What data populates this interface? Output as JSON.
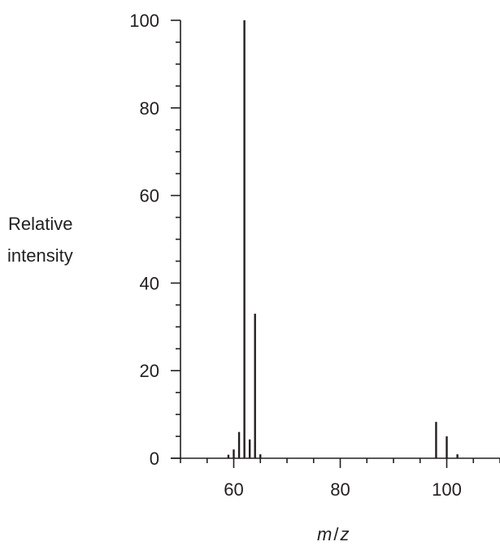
{
  "chart_data": {
    "type": "bar",
    "xlabel": "m/z",
    "xlabel_parts": {
      "m": "m",
      "slash": "/",
      "z": "z"
    },
    "ylabel": [
      "Relative",
      "intensity"
    ],
    "xlim": [
      50,
      110
    ],
    "ylim": [
      0,
      100
    ],
    "x_ticks": [
      60,
      80,
      100
    ],
    "x_minor_step": 5,
    "y_ticks": [
      0,
      20,
      40,
      60,
      80,
      100
    ],
    "y_minor_step": 5,
    "grid": false,
    "colors": {
      "stick": "#231f20",
      "axis": "#231f20"
    },
    "peaks": [
      {
        "x": 59,
        "y": 0.8
      },
      {
        "x": 60,
        "y": 2
      },
      {
        "x": 61,
        "y": 6
      },
      {
        "x": 62,
        "y": 100
      },
      {
        "x": 63,
        "y": 4.3
      },
      {
        "x": 64,
        "y": 33
      },
      {
        "x": 65,
        "y": 0.9
      },
      {
        "x": 98,
        "y": 8.3
      },
      {
        "x": 100,
        "y": 5
      },
      {
        "x": 102,
        "y": 0.9
      }
    ]
  }
}
